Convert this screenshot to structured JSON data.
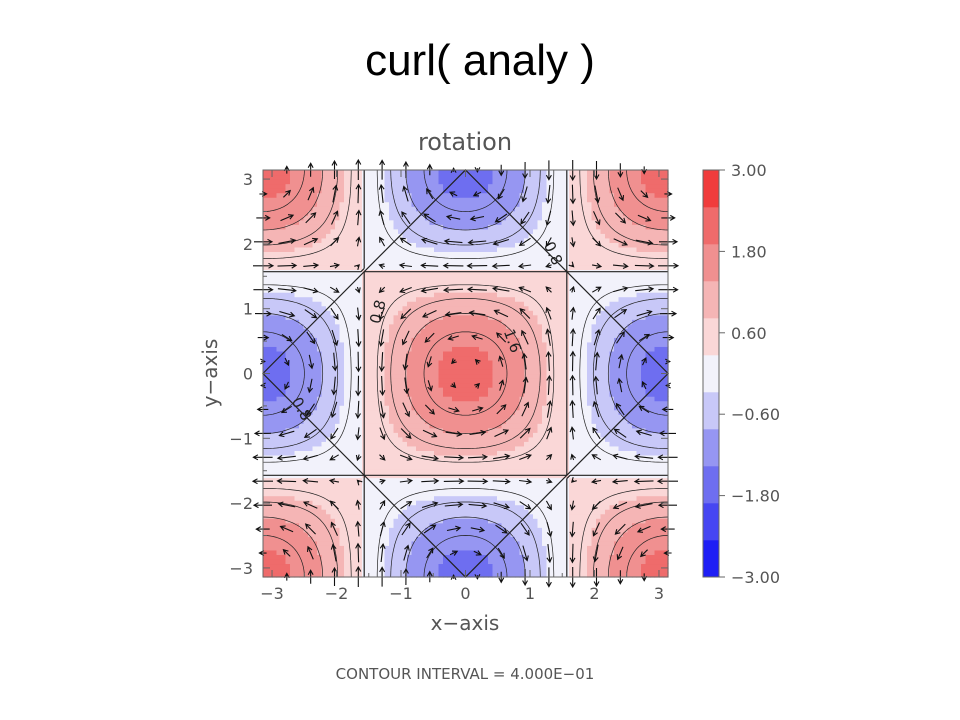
{
  "slide_title": "curl( analy )",
  "chart_data": {
    "type": "heatmap",
    "title": "rotation",
    "xlabel": "x−axis",
    "ylabel": "y−axis",
    "xlim": [
      -3.14,
      3.14
    ],
    "ylim": [
      -3.14,
      3.14
    ],
    "x_ticks": [
      -3,
      -2,
      -1,
      0,
      1,
      2,
      3
    ],
    "y_ticks": [
      -3,
      -2,
      -1,
      0,
      1,
      2,
      3
    ],
    "x_tick_labels": [
      "−3",
      "−2",
      "−1",
      "0",
      "1",
      "2",
      "3"
    ],
    "y_tick_labels": [
      "−3",
      "−2",
      "−1",
      "0",
      "1",
      "2",
      "3"
    ],
    "colorbar": {
      "levels": [
        -3.0,
        -2.4,
        -1.8,
        -1.2,
        -0.6,
        0.0,
        0.6,
        1.2,
        1.8,
        2.4,
        3.0
      ],
      "tick_values": [
        -3.0,
        -1.8,
        -0.6,
        0.6,
        1.8,
        3.0
      ],
      "tick_labels": [
        "−3.00",
        "−1.80",
        "−0.60",
        "0.60",
        "1.80",
        "3.00"
      ],
      "colors": [
        "#1e1ef5",
        "#4646f2",
        "#6e6ef0",
        "#9696f2",
        "#c8c8f8",
        "#f2f2fb",
        "#fad7d7",
        "#f5b5b5",
        "#f09090",
        "#ef6b6b",
        "#f03c3c"
      ]
    },
    "contour_labels": [
      {
        "text": "0.8",
        "x": -1.35,
        "y": 0.95,
        "angle": -75
      },
      {
        "text": "1.6",
        "x": 0.72,
        "y": 0.5,
        "angle": 70
      },
      {
        "text": "0.8",
        "x": 1.35,
        "y": 1.85,
        "angle": 65
      },
      {
        "text": "0.8",
        "x": -2.55,
        "y": -0.55,
        "angle": 60
      }
    ],
    "footer": "CONTOUR INTERVAL = 4.000E−01",
    "grid": false,
    "legend": "colorbar-right"
  }
}
